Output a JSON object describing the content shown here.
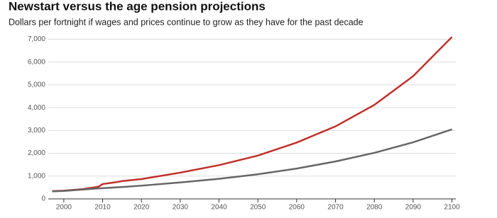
{
  "chart_data": {
    "type": "line",
    "title": "Newstart versus the age pension projections",
    "subtitle": "Dollars per fortnight if wages and prices continue to grow as they have for the past decade",
    "x": [
      1997,
      2000,
      2005,
      2008,
      2009,
      2010,
      2013,
      2015,
      2020,
      2030,
      2040,
      2050,
      2060,
      2070,
      2080,
      2090,
      2100
    ],
    "series": [
      {
        "color": "#c0302b",
        "values": [
          340,
          360,
          430,
          510,
          540,
          650,
          720,
          780,
          870,
          1150,
          1480,
          1900,
          2470,
          3180,
          4120,
          5380,
          7100
        ]
      },
      {
        "color": "#666666",
        "values": [
          330,
          350,
          410,
          450,
          460,
          470,
          500,
          520,
          580,
          720,
          880,
          1080,
          1330,
          1640,
          2020,
          2480,
          3050
        ]
      }
    ],
    "xlim": [
      1996,
      2101
    ],
    "xticks": [
      2000,
      2010,
      2020,
      2030,
      2040,
      2050,
      2060,
      2070,
      2080,
      2090,
      2100
    ],
    "ylim": [
      0,
      7200
    ],
    "yticks": [
      0,
      {
        "value": 1000,
        "label": "1,000"
      },
      {
        "value": 2000,
        "label": "2,000"
      },
      {
        "value": 3000,
        "label": "3,000"
      },
      {
        "value": 4000,
        "label": "4,000"
      },
      {
        "value": 5000,
        "label": "5,000"
      },
      {
        "value": 6000,
        "label": "6,000"
      },
      {
        "value": 7000,
        "label": "7,000"
      }
    ],
    "grid": true
  }
}
